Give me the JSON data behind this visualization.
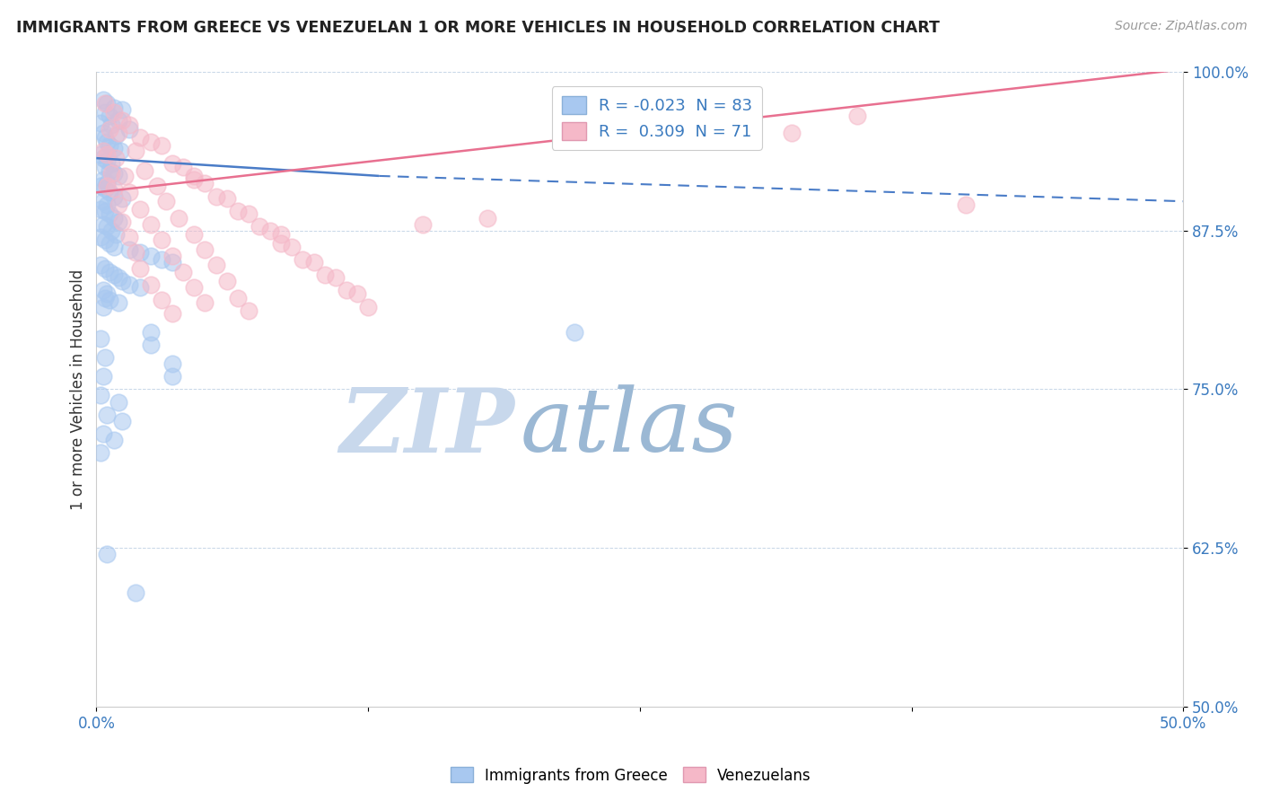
{
  "title": "IMMIGRANTS FROM GREECE VS VENEZUELAN 1 OR MORE VEHICLES IN HOUSEHOLD CORRELATION CHART",
  "source": "Source: ZipAtlas.com",
  "ylabel": "1 or more Vehicles in Household",
  "xlim": [
    0.0,
    50.0
  ],
  "ylim": [
    50.0,
    100.0
  ],
  "blue_color": "#a8c8f0",
  "pink_color": "#f5b8c8",
  "blue_line_color": "#4a7cc7",
  "pink_line_color": "#e87090",
  "watermark_zip": "ZIP",
  "watermark_atlas": "atlas",
  "watermark_color_zip": "#c8d8ec",
  "watermark_color_atlas": "#9bb8d4",
  "blue_r": -0.023,
  "pink_r": 0.309,
  "blue_n": 83,
  "pink_n": 71,
  "blue_line_x0": 0.0,
  "blue_line_y0": 93.2,
  "blue_line_x1": 13.0,
  "blue_line_y1": 91.8,
  "blue_dash_x0": 13.0,
  "blue_dash_y0": 91.8,
  "blue_dash_x1": 50.0,
  "blue_dash_y1": 89.8,
  "pink_line_x0": 0.0,
  "pink_line_y0": 90.5,
  "pink_line_x1": 50.0,
  "pink_line_y1": 100.2,
  "blue_scatter": [
    [
      0.3,
      97.8
    ],
    [
      0.5,
      97.5
    ],
    [
      0.8,
      97.2
    ],
    [
      1.2,
      97.0
    ],
    [
      0.4,
      96.8
    ],
    [
      0.6,
      96.5
    ],
    [
      1.0,
      96.2
    ],
    [
      0.2,
      96.0
    ],
    [
      0.7,
      95.8
    ],
    [
      1.5,
      95.5
    ],
    [
      0.3,
      95.2
    ],
    [
      0.9,
      95.0
    ],
    [
      0.4,
      94.8
    ],
    [
      0.5,
      94.5
    ],
    [
      0.6,
      94.2
    ],
    [
      0.8,
      94.0
    ],
    [
      1.1,
      93.8
    ],
    [
      0.2,
      93.5
    ],
    [
      0.3,
      93.2
    ],
    [
      0.5,
      93.0
    ],
    [
      0.7,
      92.8
    ],
    [
      0.4,
      92.5
    ],
    [
      0.6,
      92.2
    ],
    [
      0.8,
      92.0
    ],
    [
      1.0,
      91.8
    ],
    [
      0.3,
      91.5
    ],
    [
      0.5,
      91.2
    ],
    [
      0.2,
      91.0
    ],
    [
      0.4,
      90.8
    ],
    [
      0.6,
      90.5
    ],
    [
      0.8,
      90.2
    ],
    [
      1.2,
      90.0
    ],
    [
      0.3,
      89.8
    ],
    [
      0.5,
      89.5
    ],
    [
      0.2,
      89.2
    ],
    [
      0.4,
      89.0
    ],
    [
      0.6,
      88.8
    ],
    [
      0.8,
      88.5
    ],
    [
      1.0,
      88.2
    ],
    [
      0.3,
      88.0
    ],
    [
      0.5,
      87.8
    ],
    [
      0.7,
      87.5
    ],
    [
      0.9,
      87.2
    ],
    [
      0.2,
      87.0
    ],
    [
      0.4,
      86.8
    ],
    [
      0.6,
      86.5
    ],
    [
      0.8,
      86.2
    ],
    [
      1.5,
      86.0
    ],
    [
      2.0,
      85.8
    ],
    [
      2.5,
      85.5
    ],
    [
      3.0,
      85.2
    ],
    [
      3.5,
      85.0
    ],
    [
      0.2,
      84.8
    ],
    [
      0.4,
      84.5
    ],
    [
      0.6,
      84.2
    ],
    [
      0.8,
      84.0
    ],
    [
      1.0,
      83.8
    ],
    [
      1.2,
      83.5
    ],
    [
      1.5,
      83.2
    ],
    [
      2.0,
      83.0
    ],
    [
      0.3,
      82.8
    ],
    [
      0.5,
      82.5
    ],
    [
      0.4,
      82.2
    ],
    [
      0.6,
      82.0
    ],
    [
      1.0,
      81.8
    ],
    [
      0.3,
      81.5
    ],
    [
      0.2,
      79.0
    ],
    [
      0.4,
      77.5
    ],
    [
      0.3,
      76.0
    ],
    [
      0.2,
      74.5
    ],
    [
      0.5,
      73.0
    ],
    [
      0.3,
      71.5
    ],
    [
      0.2,
      70.0
    ],
    [
      2.5,
      79.5
    ],
    [
      2.5,
      78.5
    ],
    [
      3.5,
      77.0
    ],
    [
      3.5,
      76.0
    ],
    [
      1.0,
      74.0
    ],
    [
      1.2,
      72.5
    ],
    [
      0.8,
      71.0
    ],
    [
      0.5,
      62.0
    ],
    [
      1.8,
      59.0
    ],
    [
      22.0,
      79.5
    ]
  ],
  "pink_scatter": [
    [
      0.4,
      97.5
    ],
    [
      0.8,
      96.8
    ],
    [
      1.2,
      96.2
    ],
    [
      1.5,
      95.8
    ],
    [
      0.6,
      95.5
    ],
    [
      1.0,
      95.2
    ],
    [
      2.0,
      94.8
    ],
    [
      2.5,
      94.5
    ],
    [
      3.0,
      94.2
    ],
    [
      1.8,
      93.8
    ],
    [
      0.5,
      93.5
    ],
    [
      0.9,
      93.2
    ],
    [
      3.5,
      92.8
    ],
    [
      4.0,
      92.5
    ],
    [
      2.2,
      92.2
    ],
    [
      0.7,
      92.0
    ],
    [
      1.3,
      91.8
    ],
    [
      4.5,
      91.5
    ],
    [
      5.0,
      91.2
    ],
    [
      2.8,
      91.0
    ],
    [
      0.8,
      90.8
    ],
    [
      1.5,
      90.5
    ],
    [
      5.5,
      90.2
    ],
    [
      6.0,
      90.0
    ],
    [
      3.2,
      89.8
    ],
    [
      1.0,
      89.5
    ],
    [
      2.0,
      89.2
    ],
    [
      6.5,
      89.0
    ],
    [
      7.0,
      88.8
    ],
    [
      3.8,
      88.5
    ],
    [
      1.2,
      88.2
    ],
    [
      2.5,
      88.0
    ],
    [
      7.5,
      87.8
    ],
    [
      8.0,
      87.5
    ],
    [
      4.5,
      87.2
    ],
    [
      1.5,
      87.0
    ],
    [
      3.0,
      86.8
    ],
    [
      8.5,
      86.5
    ],
    [
      9.0,
      86.2
    ],
    [
      5.0,
      86.0
    ],
    [
      1.8,
      85.8
    ],
    [
      3.5,
      85.5
    ],
    [
      9.5,
      85.2
    ],
    [
      10.0,
      85.0
    ],
    [
      5.5,
      84.8
    ],
    [
      2.0,
      84.5
    ],
    [
      4.0,
      84.2
    ],
    [
      10.5,
      84.0
    ],
    [
      11.0,
      83.8
    ],
    [
      6.0,
      83.5
    ],
    [
      2.5,
      83.2
    ],
    [
      4.5,
      83.0
    ],
    [
      11.5,
      82.8
    ],
    [
      12.0,
      82.5
    ],
    [
      6.5,
      82.2
    ],
    [
      3.0,
      82.0
    ],
    [
      5.0,
      81.8
    ],
    [
      12.5,
      81.5
    ],
    [
      7.0,
      81.2
    ],
    [
      3.5,
      81.0
    ],
    [
      0.5,
      91.0
    ],
    [
      0.3,
      93.8
    ],
    [
      27.0,
      97.8
    ],
    [
      35.0,
      96.5
    ],
    [
      40.0,
      89.5
    ],
    [
      22.0,
      95.5
    ],
    [
      18.0,
      88.5
    ],
    [
      15.0,
      88.0
    ],
    [
      32.0,
      95.2
    ],
    [
      4.5,
      91.8
    ],
    [
      8.5,
      87.2
    ]
  ]
}
